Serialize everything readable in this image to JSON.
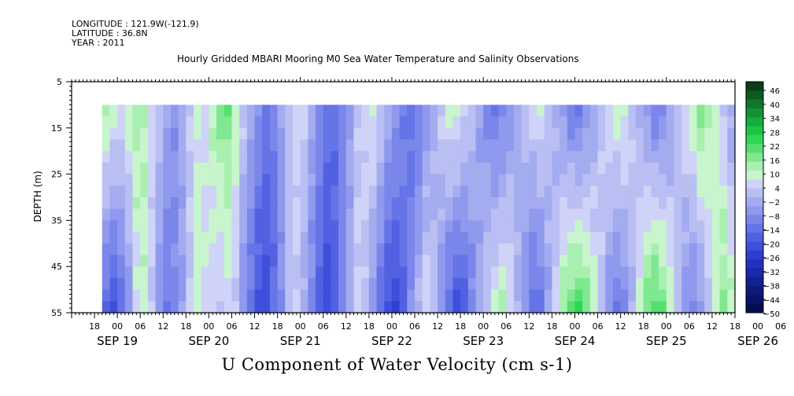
{
  "header": {
    "longitude": "LONGITUDE : 121.9W(-121.9)",
    "latitude": "LATITUDE : 36.8N",
    "year": "YEAR : 2011",
    "title": "Hourly Gridded MBARI Mooring M0 Sea Water Temperature and Salinity Observations"
  },
  "chart_data": {
    "type": "heatmap",
    "title": "Hourly Gridded MBARI Mooring M0 Sea Water Temperature and Salinity Observations",
    "xlabel": "U Component of Water Velocity (cm s-1)",
    "ylabel": "DEPTH (m)",
    "ylim": [
      5,
      55
    ],
    "y_reversed": true,
    "yticks": [
      "5",
      "15",
      "25",
      "35",
      "45",
      "55"
    ],
    "xticks_hours": [
      "18",
      "00",
      "06",
      "12",
      "18",
      "00",
      "06",
      "12",
      "18",
      "00",
      "06",
      "12",
      "18",
      "00",
      "06",
      "12",
      "18",
      "00",
      "06",
      "12",
      "18",
      "00",
      "06",
      "12",
      "18",
      "00",
      "06",
      "12",
      "18",
      "00",
      "06",
      "12"
    ],
    "xticks_days": [
      "SEP 19",
      "SEP 20",
      "SEP 21",
      "SEP 22",
      "SEP 23",
      "SEP 24",
      "SEP 25",
      "SEP 26"
    ],
    "x_range_hours": [
      "SEP 19 12:00",
      "SEP 26 18:00"
    ],
    "data_start": "SEP 19 20:00",
    "data_depth_range_m": [
      10,
      55
    ],
    "colorbar": {
      "levels": [
        "46",
        "40",
        "34",
        "28",
        "22",
        "16",
        "10",
        "4",
        "−2",
        "−8",
        "−14",
        "−20",
        "−26",
        "−32",
        "−38",
        "−44",
        "−50"
      ],
      "min": -50,
      "max": 50,
      "colors_hi_to_lo": [
        "#0b3d18",
        "#0d5a22",
        "#10762c",
        "#139235",
        "#16ab3c",
        "#1dc444",
        "#2fd653",
        "#55e06e",
        "#7fe890",
        "#a9f0b0",
        "#c8f5cd",
        "#cfd3f7",
        "#b9bff3",
        "#a4acf0",
        "#8f99ed",
        "#7a86ea",
        "#6574e6",
        "#5161e2",
        "#3e4fdc",
        "#2d3ed0",
        "#2232bf",
        "#1a28aa",
        "#132094",
        "#0e197e",
        "#0a1369",
        "#060d53"
      ]
    },
    "column_profiles_cm_s": {
      "note": "approx. U velocity by time (2-hour steps from SEP 19 20:00), surface(10m)→bottom(55m)",
      "surface": [
        12,
        10,
        8,
        10,
        14,
        12,
        6,
        2,
        -4,
        -6,
        -2,
        4,
        8,
        6,
        12,
        16,
        18,
        10,
        4,
        -2,
        -8,
        -12,
        -10,
        -4,
        2,
        6,
        4,
        -2,
        -8,
        -12,
        -14,
        -10,
        -4,
        2,
        6,
        8,
        4,
        -2,
        -6,
        -10,
        -14,
        -12,
        -6,
        -2,
        4,
        8,
        10,
        6,
        2,
        -4,
        -8,
        -12,
        -10,
        -6,
        -2,
        2,
        6,
        8,
        4,
        -2,
        -6,
        -10,
        -12,
        -8,
        -2,
        4,
        8,
        10,
        8,
        4,
        -2,
        -6,
        -10,
        -8,
        -4,
        2,
        8,
        12,
        16,
        14,
        10,
        4,
        -2,
        -8,
        -6,
        -2,
        4,
        8,
        10,
        6
      ],
      "bottom": [
        -16,
        -20,
        -14,
        -6,
        6,
        10,
        4,
        -6,
        -12,
        -10,
        -4,
        4,
        10,
        8,
        4,
        2,
        6,
        4,
        -6,
        -14,
        -20,
        -22,
        -16,
        -8,
        2,
        4,
        -2,
        -10,
        -18,
        -22,
        -18,
        -10,
        -2,
        6,
        2,
        -6,
        -14,
        -20,
        -22,
        -16,
        -8,
        0,
        6,
        2,
        -6,
        -14,
        -20,
        -18,
        -10,
        -2,
        4,
        10,
        12,
        8,
        0,
        -8,
        -14,
        -12,
        -4,
        6,
        14,
        20,
        22,
        18,
        10,
        2,
        -6,
        -12,
        -8,
        0,
        10,
        18,
        22,
        18,
        10,
        2,
        -6,
        -10,
        -6,
        2,
        10,
        16,
        12,
        4,
        -4,
        -10,
        -12,
        -8,
        2,
        14
      ]
    }
  }
}
